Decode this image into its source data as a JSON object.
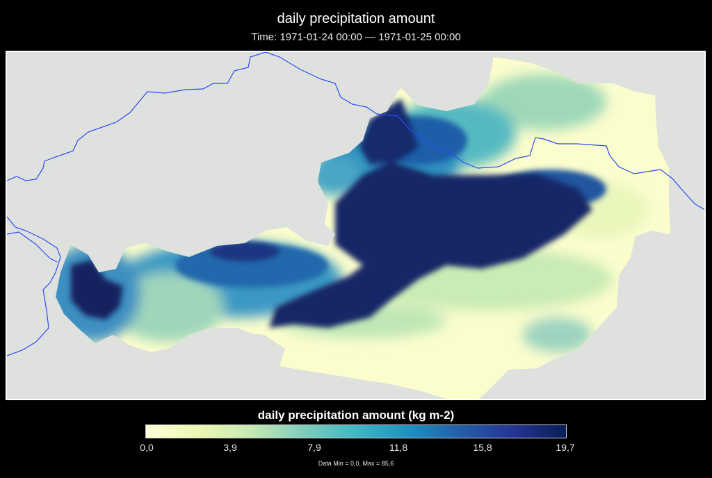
{
  "map": {
    "title": "daily precipitation amount",
    "subtitle": "Time: 1971-01-24 00:00 — 1971-01-25 00:00",
    "background_color": "#dfe1df",
    "border_color": "#2b4bf0",
    "region": "Austria"
  },
  "legend": {
    "title": "daily precipitation amount (kg m-2)",
    "ticks": [
      "0,0",
      "3,9",
      "7,9",
      "11,8",
      "15,8",
      "19,7"
    ],
    "min": 0.0,
    "max": 19.7,
    "colors": [
      "#ffffd9",
      "#edf8b1",
      "#c7e9b4",
      "#7fcdbb",
      "#41b6c4",
      "#1d91c0",
      "#225ea8",
      "#253494",
      "#081d58"
    ]
  },
  "footer": {
    "data_range": "Data Min = 0,0, Max = 85,6"
  }
}
